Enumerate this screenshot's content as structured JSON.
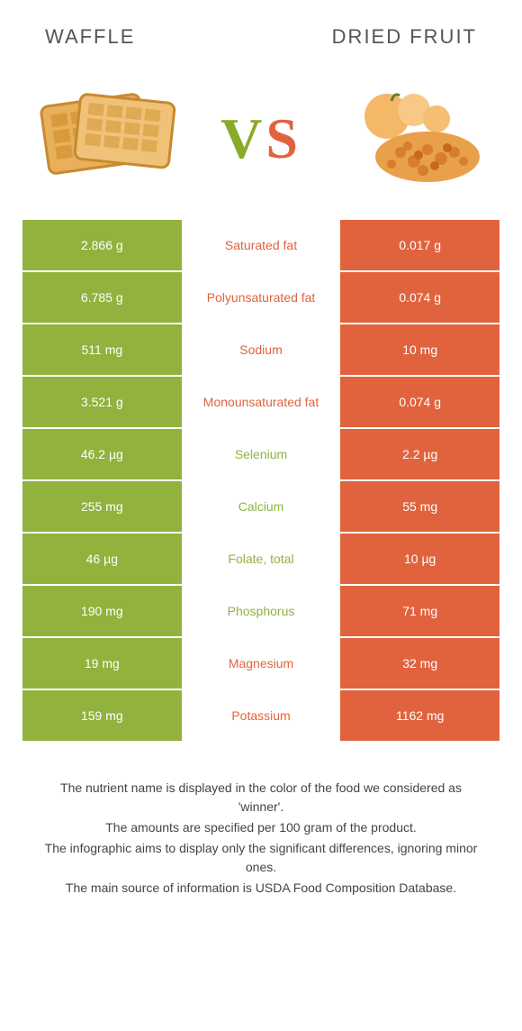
{
  "colors": {
    "green": "#91b23d",
    "orange": "#e0633e"
  },
  "titles": {
    "left": "Waffle",
    "right": "Dried fruit",
    "vs_v": "V",
    "vs_s": "S"
  },
  "rows": [
    {
      "left": "2.866 g",
      "label": "Saturated fat",
      "right": "0.017 g",
      "winner": "right"
    },
    {
      "left": "6.785 g",
      "label": "Polyunsaturated fat",
      "right": "0.074 g",
      "winner": "right"
    },
    {
      "left": "511 mg",
      "label": "Sodium",
      "right": "10 mg",
      "winner": "right"
    },
    {
      "left": "3.521 g",
      "label": "Monounsaturated fat",
      "right": "0.074 g",
      "winner": "right"
    },
    {
      "left": "46.2 µg",
      "label": "Selenium",
      "right": "2.2 µg",
      "winner": "left"
    },
    {
      "left": "255 mg",
      "label": "Calcium",
      "right": "55 mg",
      "winner": "left"
    },
    {
      "left": "46 µg",
      "label": "Folate, total",
      "right": "10 µg",
      "winner": "left"
    },
    {
      "left": "190 mg",
      "label": "Phosphorus",
      "right": "71 mg",
      "winner": "left"
    },
    {
      "left": "19 mg",
      "label": "Magnesium",
      "right": "32 mg",
      "winner": "right"
    },
    {
      "left": "159 mg",
      "label": "Potassium",
      "right": "1162 mg",
      "winner": "right"
    }
  ],
  "footer": [
    "The nutrient name is displayed in the color of the food we considered as 'winner'.",
    "The amounts are specified per 100 gram of the product.",
    "The infographic aims to display only the significant differences, ignoring minor ones.",
    "The main source of information is USDA Food Composition Database."
  ]
}
